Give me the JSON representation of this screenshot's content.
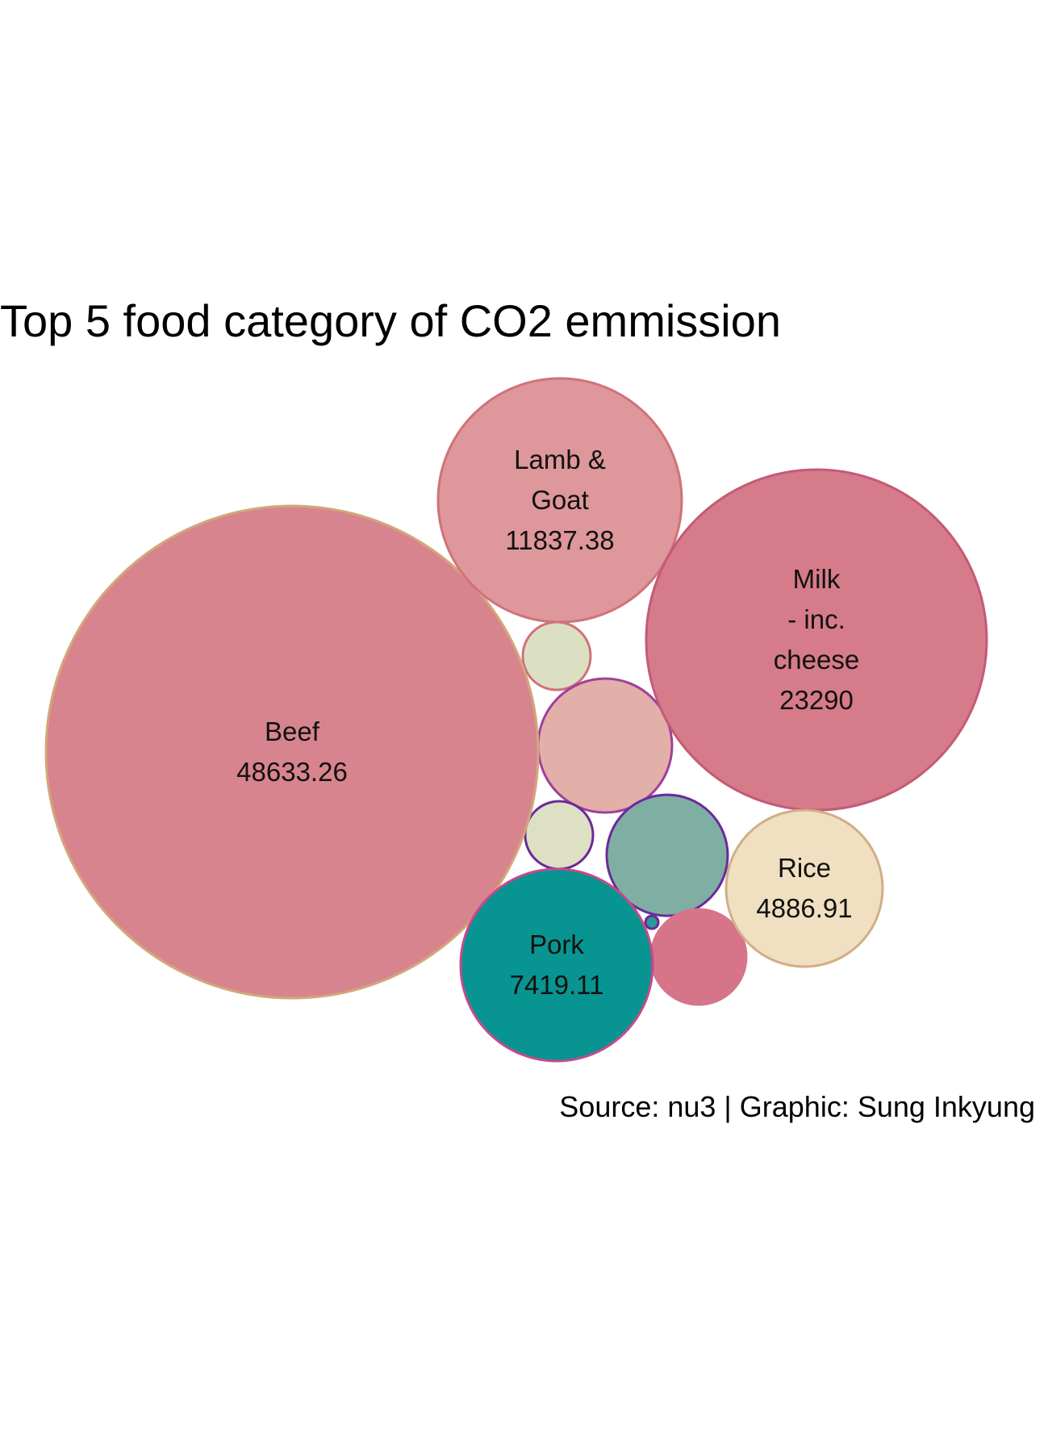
{
  "chart_data": {
    "type": "bubble",
    "title": "Top 5 food category of CO2 emmission",
    "caption": "Source: nu3 | Graphic: Sung Inkyung",
    "labeled": [
      {
        "name": "Beef",
        "name_lines": [
          "Beef"
        ],
        "value": "48633.26",
        "fill": "#D8848E",
        "stroke": "#D2A87A"
      },
      {
        "name": "Lamb & Goat",
        "name_lines": [
          "Lamb &",
          "Goat"
        ],
        "value": "11837.38",
        "fill": "#DE979A",
        "stroke": "#D0727A"
      },
      {
        "name": "Milk - inc. cheese",
        "name_lines": [
          "Milk",
          "- inc.",
          "cheese"
        ],
        "value": "23290",
        "fill": "#D67B8A",
        "stroke": "#C45A78"
      },
      {
        "name": "Rice",
        "name_lines": [
          "Rice"
        ],
        "value": "4886.91",
        "fill": "#F0DFC1",
        "stroke": "#D2AE85"
      },
      {
        "name": "Pork",
        "name_lines": [
          "Pork"
        ],
        "value": "7419.11",
        "fill": "#089490",
        "stroke": "#C44A8C"
      }
    ],
    "unlabeled": [
      {
        "fill": "#DCE0C2",
        "stroke": "#D0727A"
      },
      {
        "fill": "#E2AFA9",
        "stroke": "#A0409A"
      },
      {
        "fill": "#DEE0C4",
        "stroke": "#6A2A9A"
      },
      {
        "fill": "#7FAEA3",
        "stroke": "#6A2A9A"
      },
      {
        "fill": "#D67489",
        "stroke": "#D67489"
      },
      {
        "fill": "#2A9A96",
        "stroke": "#6A2A9A"
      }
    ]
  }
}
